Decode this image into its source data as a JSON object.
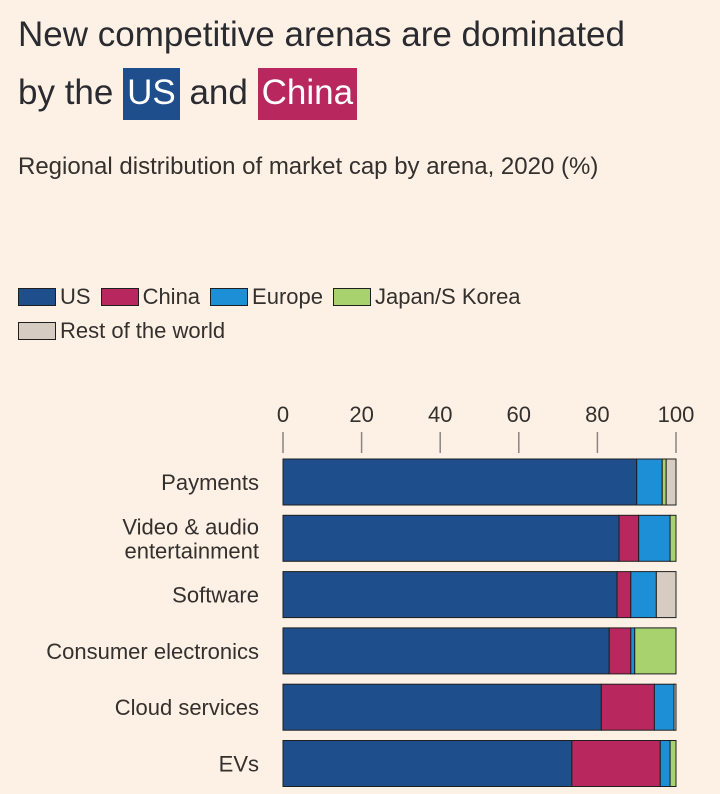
{
  "title": {
    "line1": "New competitive arenas are dominated",
    "prefix": "by the",
    "us": "US",
    "and": "and",
    "china": "China"
  },
  "subtitle": "Regional distribution of market cap by arena, 2020 (%)",
  "colors": {
    "US": "#1f4e8c",
    "China": "#b8285e",
    "Europe": "#1d8fd6",
    "Japan/S Korea": "#a8d26e",
    "Rest of the world": "#d6ccc2"
  },
  "chart_data": {
    "type": "bar",
    "orientation": "horizontal",
    "stacked": true,
    "title": "Regional distribution of market cap by arena, 2020 (%)",
    "xlim": [
      0,
      100
    ],
    "xticks": [
      0,
      20,
      40,
      60,
      80,
      100
    ],
    "legend_position": "top",
    "categories": [
      "Payments",
      "Video & audio entertainment",
      "Software",
      "Consumer electronics",
      "Cloud services",
      "EVs"
    ],
    "category_lines": [
      [
        "Payments"
      ],
      [
        "Video & audio",
        "entertainment"
      ],
      [
        "Software"
      ],
      [
        "Consumer electronics"
      ],
      [
        "Cloud services"
      ],
      [
        "EVs"
      ]
    ],
    "series": [
      {
        "name": "US",
        "values": [
          90,
          85.5,
          85,
          83,
          81,
          73.5
        ]
      },
      {
        "name": "China",
        "values": [
          0,
          5,
          3.5,
          5.5,
          13.5,
          22.5
        ]
      },
      {
        "name": "Europe",
        "values": [
          6.5,
          8,
          6.5,
          1,
          5,
          2.5
        ]
      },
      {
        "name": "Japan/S Korea",
        "values": [
          1,
          1.5,
          0,
          10.5,
          0,
          1.5
        ]
      },
      {
        "name": "Rest of the world",
        "values": [
          2.5,
          0,
          5,
          0,
          0.5,
          0
        ]
      }
    ]
  }
}
